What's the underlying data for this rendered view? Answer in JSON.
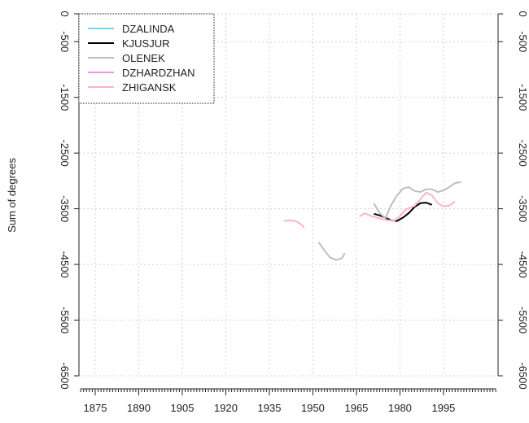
{
  "chart_data": {
    "type": "line",
    "y_label": "Sum of degrees",
    "xlim": [
      1869.4,
      2013.8
    ],
    "xticks": [
      1875,
      1890,
      1905,
      1920,
      1935,
      1950,
      1965,
      1980,
      1995
    ],
    "ylim": [
      -6500,
      0
    ],
    "yticks": [
      0,
      -500,
      -1500,
      -2500,
      -3500,
      -4500,
      -5500,
      -6500
    ],
    "grid": true,
    "legend": "top-left",
    "series": [
      {
        "name": "DZALINDA",
        "color": "#87ceeb",
        "x": [],
        "values": []
      },
      {
        "name": "KJUSJUR",
        "color": "#000000",
        "x": [
          1971,
          1973,
          1975,
          1977,
          1979,
          1981,
          1983,
          1985,
          1987,
          1989,
          1991
        ],
        "values": [
          -3590,
          -3620,
          -3660,
          -3710,
          -3720,
          -3660,
          -3580,
          -3470,
          -3400,
          -3390,
          -3430
        ]
      },
      {
        "name": "OLENEK",
        "color": "#bebebe",
        "x": [
          1952,
          1954,
          1956,
          1958,
          1960,
          1961,
          null,
          1971,
          1973,
          1975,
          1977,
          1979,
          1981,
          1983,
          1985,
          1987,
          1989,
          1991,
          1993,
          1995,
          1997,
          1999,
          2001
        ],
        "values": [
          -4100,
          -4250,
          -4380,
          -4420,
          -4390,
          -4300,
          null,
          -3400,
          -3580,
          -3670,
          -3430,
          -3260,
          -3140,
          -3110,
          -3180,
          -3200,
          -3150,
          -3150,
          -3200,
          -3170,
          -3110,
          -3040,
          -3020
        ]
      },
      {
        "name": "DZHARDZHAN",
        "color": "#dda0dd",
        "x": [],
        "values": []
      },
      {
        "name": "ZHIGANSK",
        "color": "#ffb6c1",
        "x": [
          1940,
          1942,
          1944,
          1946,
          1947,
          null,
          1966,
          1968,
          1970,
          1972,
          1975,
          1978,
          1980,
          1982,
          1985,
          1987,
          1989,
          1991,
          1993,
          1995,
          1997,
          1999
        ],
        "values": [
          -3720,
          -3710,
          -3720,
          -3780,
          -3840,
          null,
          -3640,
          -3580,
          -3630,
          -3660,
          -3700,
          -3720,
          -3630,
          -3510,
          -3450,
          -3330,
          -3210,
          -3260,
          -3400,
          -3460,
          -3440,
          -3370
        ]
      }
    ]
  }
}
